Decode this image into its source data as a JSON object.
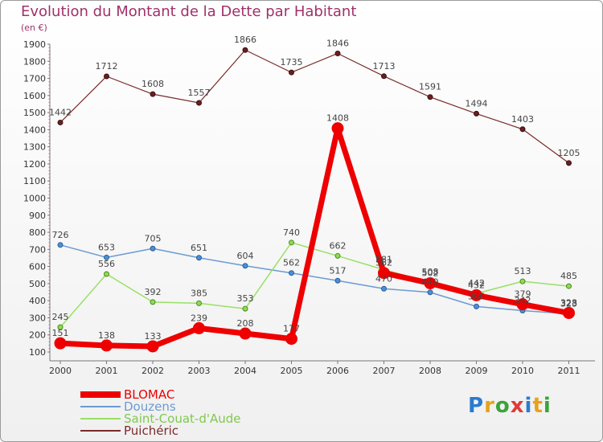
{
  "header": {
    "title": "Evolution du Montant de la Dette par Habitant",
    "subtitle": "(en €)"
  },
  "colors": {
    "title": "#a0306a",
    "BLOMAC": "#ee0000",
    "Douzens": "#6b9bd1",
    "Saint-Couat-d'Aude": "#99e066",
    "Puichéric": "#7b2a2a"
  },
  "logo": "Proxiti",
  "chart_data": {
    "type": "line",
    "title": "Evolution du Montant de la Dette par Habitant",
    "subtitle": "(en €)",
    "x": [
      "2000",
      "2001",
      "2002",
      "2003",
      "2004",
      "2005",
      "2006",
      "2007",
      "2008",
      "2009",
      "2010",
      "2011"
    ],
    "yticks": [
      100,
      200,
      300,
      400,
      500,
      600,
      700,
      800,
      900,
      1000,
      1100,
      1200,
      1300,
      1400,
      1500,
      1600,
      1700,
      1800,
      1900
    ],
    "ylim": [
      100,
      1900
    ],
    "grid": false,
    "legend": "bottom-left",
    "series": [
      {
        "name": "BLOMAC",
        "values": [
          151,
          138,
          133,
          239,
          208,
          177,
          1408,
          562,
          502,
          432,
          379,
          328
        ]
      },
      {
        "name": "Douzens",
        "values": [
          726,
          653,
          705,
          651,
          604,
          562,
          517,
          470,
          449,
          366,
          342,
          323
        ]
      },
      {
        "name": "Saint-Couat-d'Aude",
        "values": [
          245,
          556,
          392,
          385,
          353,
          740,
          662,
          581,
          508,
          442,
          513,
          485
        ]
      },
      {
        "name": "Puichéric",
        "values": [
          1442,
          1712,
          1608,
          1557,
          1866,
          1735,
          1846,
          1713,
          1591,
          1494,
          1403,
          1205
        ]
      }
    ]
  }
}
